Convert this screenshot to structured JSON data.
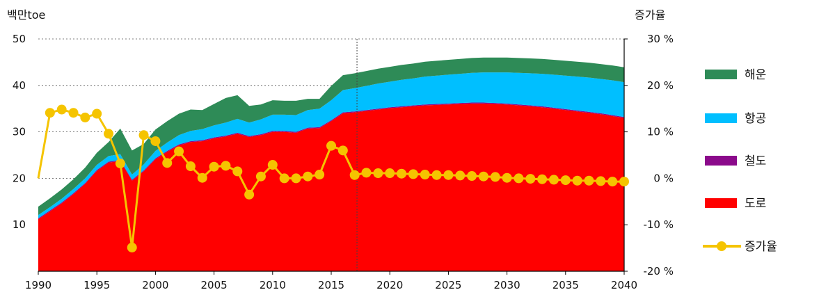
{
  "chart_data": {
    "type": "area",
    "stacked": true,
    "title": "",
    "left_axis": {
      "unit_label": "백만toe",
      "ylim": [
        0,
        50
      ],
      "ticks": [
        "10",
        "20",
        "30",
        "40",
        "50"
      ],
      "tick_values": [
        10,
        20,
        30,
        40,
        50
      ]
    },
    "right_axis": {
      "unit_label": "증가율",
      "ylim": [
        -20,
        30
      ],
      "ticks": [
        "30 %",
        "20 %",
        "10 %",
        "0 %",
        "-10 %",
        "-20 %"
      ],
      "tick_values": [
        30,
        20,
        10,
        0,
        -10,
        -20
      ]
    },
    "x_ticks": [
      "1990",
      "1995",
      "2000",
      "2005",
      "2010",
      "2015",
      "2020",
      "2025",
      "2030",
      "2035",
      "2040"
    ],
    "x_tick_values": [
      1990,
      1995,
      2000,
      2005,
      2010,
      2015,
      2020,
      2025,
      2030,
      2035,
      2040
    ],
    "xlim": [
      1990,
      2040
    ],
    "forecast_divider_year": 2017.2,
    "years": [
      1990,
      1991,
      1992,
      1993,
      1994,
      1995,
      1996,
      1997,
      1998,
      1999,
      2000,
      2001,
      2002,
      2003,
      2004,
      2005,
      2006,
      2007,
      2008,
      2009,
      2010,
      2011,
      2012,
      2013,
      2014,
      2015,
      2016,
      2017,
      2018,
      2019,
      2020,
      2021,
      2022,
      2023,
      2024,
      2025,
      2026,
      2027,
      2028,
      2029,
      2030,
      2031,
      2032,
      2033,
      2034,
      2035,
      2036,
      2037,
      2038,
      2039,
      2040
    ],
    "series": [
      {
        "name": "도로",
        "color": "#ff0000",
        "values": [
          11.2,
          12.9,
          14.6,
          16.6,
          18.8,
          21.6,
          23.4,
          23.7,
          19.5,
          21.5,
          24.1,
          25.7,
          27.1,
          27.8,
          28.0,
          28.6,
          29.0,
          29.6,
          28.9,
          29.3,
          30.0,
          30.0,
          29.8,
          30.7,
          30.8,
          32.3,
          34.0,
          34.2,
          34.5,
          34.8,
          35.1,
          35.3,
          35.5,
          35.7,
          35.8,
          35.9,
          36.0,
          36.1,
          36.1,
          36.0,
          35.9,
          35.7,
          35.5,
          35.3,
          35.0,
          34.7,
          34.4,
          34.1,
          33.8,
          33.4,
          33.0
        ]
      },
      {
        "name": "철도",
        "color": "#8b0a8b",
        "values": [
          0.2,
          0.2,
          0.2,
          0.2,
          0.2,
          0.2,
          0.2,
          0.2,
          0.2,
          0.2,
          0.2,
          0.2,
          0.2,
          0.2,
          0.2,
          0.2,
          0.2,
          0.2,
          0.2,
          0.2,
          0.2,
          0.2,
          0.2,
          0.2,
          0.2,
          0.2,
          0.2,
          0.2,
          0.2,
          0.2,
          0.2,
          0.2,
          0.2,
          0.2,
          0.2,
          0.2,
          0.2,
          0.2,
          0.2,
          0.2,
          0.2,
          0.2,
          0.2,
          0.2,
          0.2,
          0.2,
          0.2,
          0.2,
          0.2,
          0.2,
          0.2
        ]
      },
      {
        "name": "항공",
        "color": "#00bfff",
        "values": [
          0.7,
          0.7,
          0.8,
          0.9,
          1.0,
          1.1,
          1.2,
          1.3,
          1.1,
          1.3,
          1.6,
          1.8,
          2.0,
          2.2,
          2.4,
          2.6,
          2.8,
          3.0,
          2.9,
          3.2,
          3.5,
          3.5,
          3.6,
          3.8,
          4.0,
          4.3,
          4.8,
          5.0,
          5.2,
          5.4,
          5.5,
          5.7,
          5.8,
          6.0,
          6.1,
          6.2,
          6.3,
          6.4,
          6.5,
          6.6,
          6.7,
          6.8,
          6.9,
          7.0,
          7.1,
          7.2,
          7.3,
          7.4,
          7.4,
          7.5,
          7.5
        ]
      },
      {
        "name": "해운",
        "color": "#2e8b57",
        "values": [
          1.8,
          1.9,
          2.0,
          2.1,
          2.3,
          2.6,
          3.0,
          5.5,
          5.2,
          4.4,
          4.6,
          4.6,
          4.6,
          4.6,
          4.1,
          4.6,
          5.3,
          5.1,
          3.6,
          3.2,
          3.1,
          3.0,
          3.1,
          2.4,
          2.1,
          3.1,
          3.2,
          3.2,
          3.2,
          3.2,
          3.2,
          3.2,
          3.2,
          3.2,
          3.2,
          3.2,
          3.2,
          3.2,
          3.2,
          3.2,
          3.2,
          3.2,
          3.2,
          3.2,
          3.2,
          3.2,
          3.2,
          3.2,
          3.2,
          3.2,
          3.2
        ]
      }
    ],
    "growth_rate": {
      "name": "증가율",
      "color": "#f5c400",
      "axis": "right",
      "values": [
        0.0,
        14.1,
        14.8,
        14.1,
        13.1,
        13.9,
        9.6,
        3.2,
        -14.9,
        9.3,
        8.0,
        3.3,
        5.8,
        2.6,
        0.1,
        2.5,
        2.7,
        1.5,
        -3.5,
        0.4,
        2.9,
        0.0,
        0.0,
        0.4,
        0.8,
        7.0,
        6.0,
        0.7,
        1.2,
        1.1,
        1.1,
        1.0,
        0.9,
        0.8,
        0.7,
        0.7,
        0.6,
        0.5,
        0.4,
        0.3,
        0.1,
        0.0,
        -0.1,
        -0.2,
        -0.3,
        -0.4,
        -0.5,
        -0.5,
        -0.6,
        -0.7,
        -0.7
      ]
    },
    "legend": {
      "placement": "right",
      "items": [
        "해운",
        "항공",
        "철도",
        "도로",
        "증가율"
      ]
    }
  }
}
